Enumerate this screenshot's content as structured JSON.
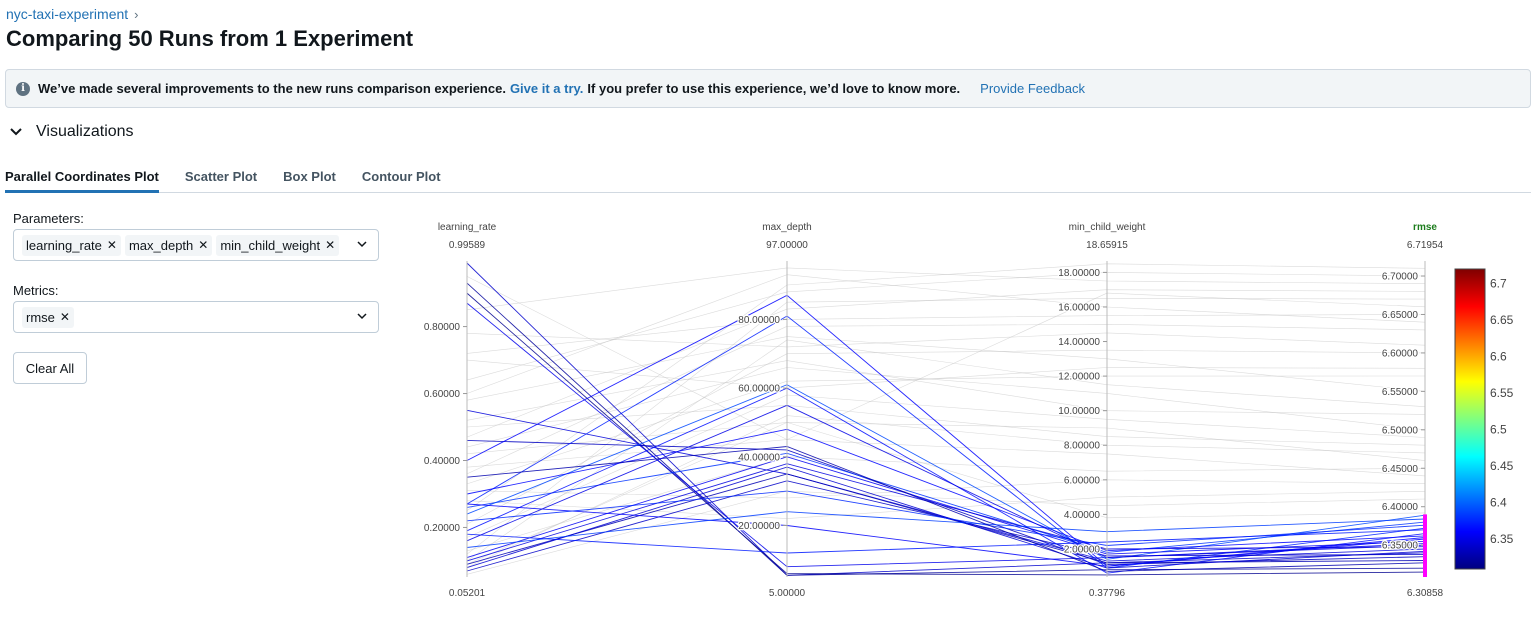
{
  "breadcrumb": {
    "experiment": "nyc-taxi-experiment"
  },
  "page_title": "Comparing 50 Runs from 1 Experiment",
  "banner": {
    "text": "We’ve made several improvements to the new runs comparison experience.",
    "link": "Give it a try.",
    "text2": "If you prefer to use this experience, we’d love to know more.",
    "feedback": "Provide Feedback"
  },
  "section": {
    "title": "Visualizations"
  },
  "tabs": [
    {
      "label": "Parallel Coordinates Plot",
      "active": true
    },
    {
      "label": "Scatter Plot",
      "active": false
    },
    {
      "label": "Box Plot",
      "active": false
    },
    {
      "label": "Contour Plot",
      "active": false
    }
  ],
  "parameters": {
    "label": "Parameters:",
    "selected": [
      "learning_rate",
      "max_depth",
      "min_child_weight"
    ]
  },
  "metrics": {
    "label": "Metrics:",
    "selected": [
      "rmse"
    ]
  },
  "clear_all": "Clear All",
  "colors": {
    "accent": "#2272b4",
    "highlight_metric": "#1c7c1c",
    "constraint": "#ff00ff"
  },
  "chart_data": {
    "type": "parcoords",
    "axes": [
      {
        "name": "learning_rate",
        "range": [
          0.05201,
          0.99589
        ],
        "top_label": "0.99589",
        "bottom_label": "0.05201",
        "ticks": [
          {
            "v": 0.2,
            "label": "0.20000"
          },
          {
            "v": 0.4,
            "label": "0.40000"
          },
          {
            "v": 0.6,
            "label": "0.60000"
          },
          {
            "v": 0.8,
            "label": "0.80000"
          }
        ]
      },
      {
        "name": "max_depth",
        "range": [
          5.0,
          97.0
        ],
        "top_label": "97.00000",
        "bottom_label": "5.00000",
        "ticks": [
          {
            "v": 20,
            "label": "20.00000"
          },
          {
            "v": 40,
            "label": "40.00000"
          },
          {
            "v": 60,
            "label": "60.00000"
          },
          {
            "v": 80,
            "label": "80.00000"
          }
        ]
      },
      {
        "name": "min_child_weight",
        "range": [
          0.37796,
          18.65915
        ],
        "top_label": "18.65915",
        "bottom_label": "0.37796",
        "ticks": [
          {
            "v": 2,
            "label": "2.00000"
          },
          {
            "v": 4,
            "label": "4.00000"
          },
          {
            "v": 6,
            "label": "6.00000"
          },
          {
            "v": 8,
            "label": "8.00000"
          },
          {
            "v": 10,
            "label": "10.00000"
          },
          {
            "v": 12,
            "label": "12.00000"
          },
          {
            "v": 14,
            "label": "14.00000"
          },
          {
            "v": 16,
            "label": "16.00000"
          },
          {
            "v": 18,
            "label": "18.00000"
          }
        ]
      },
      {
        "name": "rmse",
        "range": [
          6.30858,
          6.71954
        ],
        "top_label": "6.71954",
        "bottom_label": "6.30858",
        "highlight": true,
        "ticks": [
          {
            "v": 6.35,
            "label": "6.35000"
          },
          {
            "v": 6.4,
            "label": "6.40000"
          },
          {
            "v": 6.45,
            "label": "6.45000"
          },
          {
            "v": 6.5,
            "label": "6.50000"
          },
          {
            "v": 6.55,
            "label": "6.55000"
          },
          {
            "v": 6.6,
            "label": "6.60000"
          },
          {
            "v": 6.65,
            "label": "6.65000"
          },
          {
            "v": 6.7,
            "label": "6.70000"
          }
        ]
      }
    ],
    "constraint_range": [
      6.30858,
      6.39
    ],
    "colorbar": {
      "min": 6.30858,
      "max": 6.71954,
      "ticks": [
        "6.35",
        "6.4",
        "6.45",
        "6.5",
        "6.55",
        "6.6",
        "6.65",
        "6.7"
      ]
    },
    "runs": [
      [
        0.99,
        5.5,
        1.2,
        6.34
      ],
      [
        0.93,
        5.5,
        0.8,
        6.32
      ],
      [
        0.9,
        6.0,
        0.5,
        6.315
      ],
      [
        0.87,
        8.0,
        1.5,
        6.352
      ],
      [
        0.55,
        35.0,
        1.3,
        6.345
      ],
      [
        0.46,
        42.0,
        1.1,
        6.335
      ],
      [
        0.4,
        87.0,
        1.0,
        6.36
      ],
      [
        0.27,
        81.0,
        0.9,
        6.372
      ],
      [
        0.26,
        41.0,
        1.8,
        6.38
      ],
      [
        0.24,
        61.0,
        1.4,
        6.389
      ],
      [
        0.19,
        60.0,
        0.6,
        6.365
      ],
      [
        0.11,
        40.0,
        1.7,
        6.355
      ],
      [
        0.1,
        38.0,
        2.0,
        6.348
      ],
      [
        0.09,
        35.0,
        1.2,
        6.33
      ],
      [
        0.08,
        37.0,
        0.9,
        6.342
      ],
      [
        0.07,
        33.0,
        1.6,
        6.338
      ],
      [
        0.27,
        20.0,
        1.0,
        6.358
      ],
      [
        0.22,
        30.0,
        2.2,
        6.376
      ],
      [
        0.14,
        24.0,
        3.0,
        6.384
      ],
      [
        0.18,
        12.0,
        2.4,
        6.37
      ],
      [
        0.3,
        48.0,
        1.9,
        6.362
      ],
      [
        0.35,
        43.0,
        0.7,
        6.327
      ],
      [
        0.09,
        50.0,
        3.8,
        6.392
      ],
      [
        0.16,
        55.0,
        1.5,
        6.35
      ],
      [
        0.95,
        45.0,
        16.8,
        6.66
      ],
      [
        0.78,
        72.0,
        14.5,
        6.61
      ],
      [
        0.7,
        60.0,
        12.5,
        6.58
      ],
      [
        0.64,
        88.0,
        18.0,
        6.7
      ],
      [
        0.6,
        93.0,
        16.0,
        6.64
      ],
      [
        0.58,
        75.0,
        13.0,
        6.55
      ],
      [
        0.52,
        68.0,
        10.0,
        6.52
      ],
      [
        0.5,
        55.0,
        8.5,
        6.48
      ],
      [
        0.47,
        83.0,
        17.0,
        6.68
      ],
      [
        0.44,
        66.0,
        11.0,
        6.5
      ],
      [
        0.42,
        50.0,
        9.0,
        6.46
      ],
      [
        0.38,
        45.0,
        7.5,
        6.44
      ],
      [
        0.36,
        78.0,
        15.0,
        6.63
      ],
      [
        0.33,
        62.0,
        12.0,
        6.57
      ],
      [
        0.31,
        28.0,
        6.0,
        6.43
      ],
      [
        0.28,
        22.0,
        5.0,
        6.42
      ],
      [
        0.25,
        90.0,
        18.5,
        6.71
      ],
      [
        0.21,
        70.0,
        13.5,
        6.6
      ],
      [
        0.17,
        58.0,
        9.5,
        6.49
      ],
      [
        0.13,
        40.0,
        6.5,
        6.45
      ],
      [
        0.12,
        85.0,
        16.5,
        6.67
      ],
      [
        0.1,
        74.0,
        11.5,
        6.53
      ],
      [
        0.08,
        52.0,
        8.0,
        6.47
      ],
      [
        0.06,
        30.0,
        4.5,
        6.41
      ],
      [
        0.85,
        95.0,
        17.5,
        6.69
      ],
      [
        0.72,
        80.0,
        15.5,
        6.65
      ]
    ]
  }
}
